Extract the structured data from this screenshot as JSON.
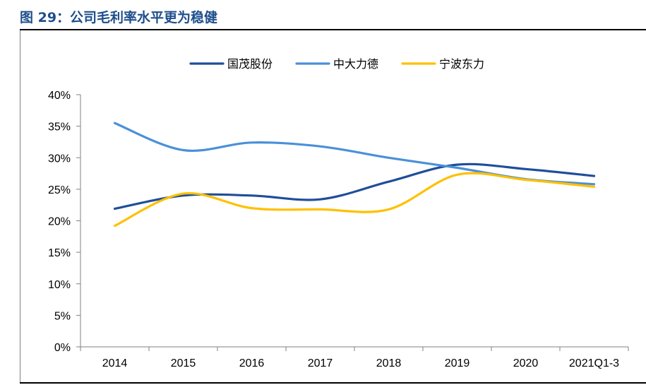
{
  "figure": {
    "title": "图 29：公司毛利率水平更为稳健"
  },
  "chart_data": {
    "type": "line",
    "categories": [
      "2014",
      "2015",
      "2016",
      "2017",
      "2018",
      "2019",
      "2020",
      "2021Q1-3"
    ],
    "y_tick_labels": [
      "0%",
      "5%",
      "10%",
      "15%",
      "20%",
      "25%",
      "30%",
      "35%",
      "40%"
    ],
    "ylim": [
      0,
      40
    ],
    "unit": "%",
    "grid": false,
    "legend_position": "top-center",
    "series": [
      {
        "name": "国茂股份",
        "color": "#1f4e9a",
        "values": [
          21.9,
          24.0,
          24.0,
          23.4,
          26.2,
          28.9,
          28.2,
          27.1
        ]
      },
      {
        "name": "中大力德",
        "color": "#4a90d9",
        "values": [
          35.5,
          31.2,
          32.4,
          31.8,
          30.0,
          28.4,
          26.6,
          25.8
        ]
      },
      {
        "name": "宁波东力",
        "color": "#ffc000",
        "values": [
          19.2,
          24.3,
          22.0,
          21.8,
          21.8,
          27.3,
          26.5,
          25.4
        ]
      }
    ]
  }
}
